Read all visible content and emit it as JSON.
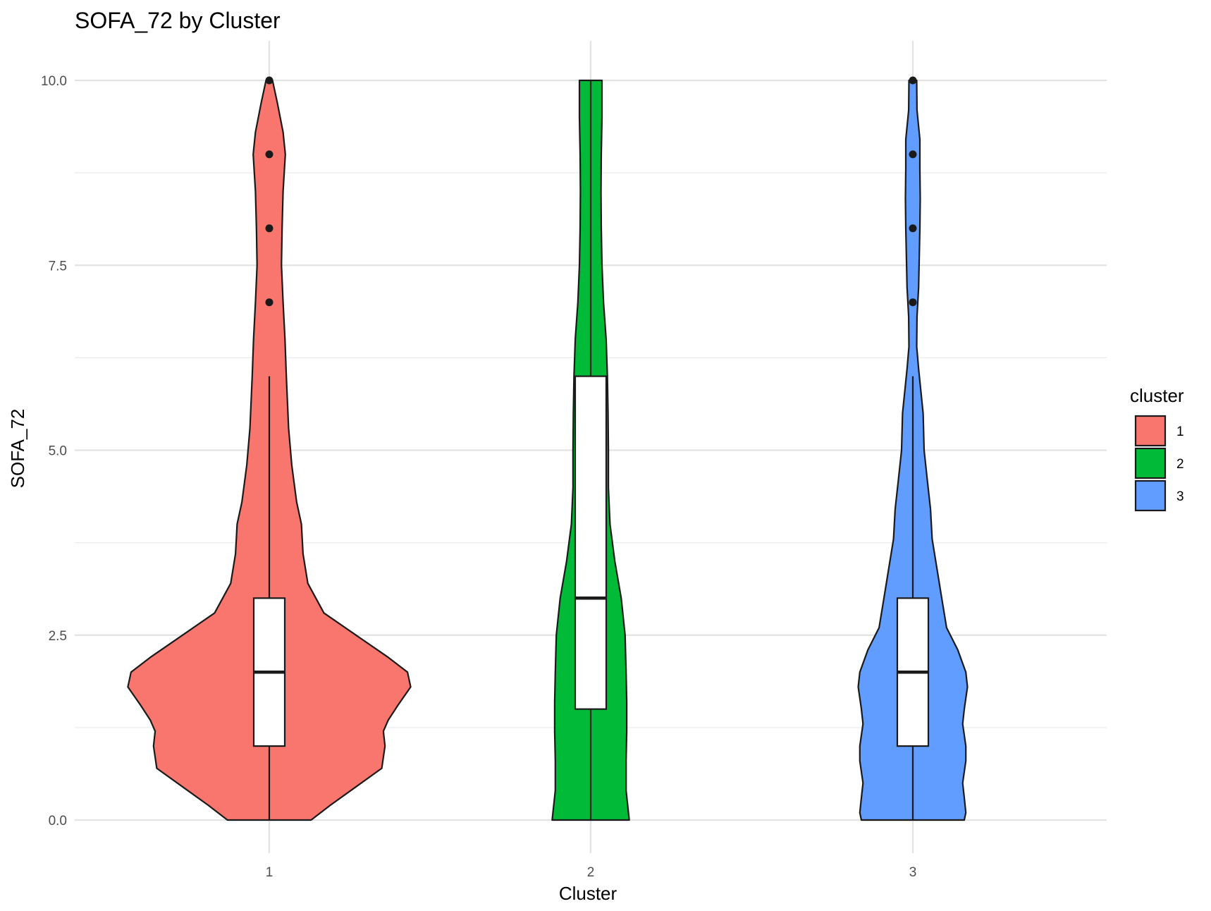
{
  "chart_data": {
    "type": "violin",
    "title": "SOFA_72 by Cluster",
    "xlabel": "Cluster",
    "ylabel": "SOFA_72",
    "ylim": [
      -0.55,
      10.55
    ],
    "yticks": [
      "0.0",
      "2.5",
      "5.0",
      "7.5",
      "10.0"
    ],
    "ytick_values": [
      0,
      2.5,
      5,
      7.5,
      10
    ],
    "categories": [
      "1",
      "2",
      "3"
    ],
    "grid": true,
    "legend": {
      "title": "cluster",
      "placement": "right",
      "entries": [
        "1",
        "2",
        "3"
      ]
    },
    "series": [
      {
        "cluster": "1",
        "color": "#F8766D",
        "violin_half_width": [
          [
            0,
            0.13
          ],
          [
            0.2,
            0.19
          ],
          [
            0.45,
            0.27
          ],
          [
            0.7,
            0.35
          ],
          [
            1.0,
            0.36
          ],
          [
            1.2,
            0.355
          ],
          [
            1.35,
            0.37
          ],
          [
            1.55,
            0.4
          ],
          [
            1.8,
            0.44
          ],
          [
            2.0,
            0.43
          ],
          [
            2.2,
            0.37
          ],
          [
            2.5,
            0.27
          ],
          [
            2.8,
            0.17
          ],
          [
            3.2,
            0.12
          ],
          [
            3.6,
            0.105
          ],
          [
            4.0,
            0.1
          ],
          [
            4.3,
            0.085
          ],
          [
            4.8,
            0.07
          ],
          [
            5.3,
            0.06
          ],
          [
            6.0,
            0.053
          ],
          [
            6.5,
            0.049
          ],
          [
            7.0,
            0.043
          ],
          [
            7.5,
            0.038
          ],
          [
            8.0,
            0.04
          ],
          [
            8.5,
            0.043
          ],
          [
            9.0,
            0.05
          ],
          [
            9.3,
            0.043
          ],
          [
            9.7,
            0.025
          ],
          [
            10.0,
            0.01
          ]
        ],
        "box": {
          "min": 0,
          "q1": 1,
          "median": 2,
          "q3": 3,
          "whisker_high": 6
        },
        "outliers": [
          7,
          8,
          9,
          10
        ]
      },
      {
        "cluster": "2",
        "color": "#00BA38",
        "violin_half_width": [
          [
            0,
            0.12
          ],
          [
            0.4,
            0.11
          ],
          [
            0.8,
            0.11
          ],
          [
            1.2,
            0.112
          ],
          [
            1.6,
            0.112
          ],
          [
            2.0,
            0.11
          ],
          [
            2.5,
            0.107
          ],
          [
            3.0,
            0.095
          ],
          [
            3.5,
            0.075
          ],
          [
            4.0,
            0.06
          ],
          [
            4.5,
            0.055
          ],
          [
            5.0,
            0.055
          ],
          [
            5.5,
            0.054
          ],
          [
            6.0,
            0.052
          ],
          [
            6.5,
            0.048
          ],
          [
            7.0,
            0.04
          ],
          [
            7.5,
            0.035
          ],
          [
            8.0,
            0.033
          ],
          [
            8.5,
            0.032
          ],
          [
            9.0,
            0.033
          ],
          [
            9.5,
            0.035
          ],
          [
            10.0,
            0.035
          ]
        ],
        "box": {
          "min": 0,
          "q1": 1.5,
          "median": 3,
          "q3": 6,
          "whisker_high": 10
        },
        "outliers": []
      },
      {
        "cluster": "3",
        "color": "#619CFF",
        "violin_half_width": [
          [
            0,
            0.16
          ],
          [
            0.1,
            0.165
          ],
          [
            0.3,
            0.16
          ],
          [
            0.5,
            0.155
          ],
          [
            0.8,
            0.165
          ],
          [
            1.0,
            0.165
          ],
          [
            1.3,
            0.155
          ],
          [
            1.5,
            0.16
          ],
          [
            1.8,
            0.17
          ],
          [
            2.0,
            0.165
          ],
          [
            2.3,
            0.14
          ],
          [
            2.6,
            0.105
          ],
          [
            3.0,
            0.09
          ],
          [
            3.4,
            0.075
          ],
          [
            3.8,
            0.06
          ],
          [
            4.2,
            0.055
          ],
          [
            4.6,
            0.045
          ],
          [
            5.0,
            0.035
          ],
          [
            5.5,
            0.032
          ],
          [
            5.8,
            0.025
          ],
          [
            6.1,
            0.018
          ],
          [
            6.4,
            0.012
          ],
          [
            6.8,
            0.013
          ],
          [
            7.2,
            0.018
          ],
          [
            7.6,
            0.02
          ],
          [
            8.0,
            0.022
          ],
          [
            8.4,
            0.023
          ],
          [
            8.8,
            0.022
          ],
          [
            9.2,
            0.022
          ],
          [
            9.6,
            0.013
          ],
          [
            10.0,
            0.012
          ]
        ],
        "box": {
          "min": 0,
          "q1": 1,
          "median": 2,
          "q3": 3,
          "whisker_high": 6
        },
        "outliers": [
          7,
          8,
          9,
          10
        ]
      }
    ]
  }
}
